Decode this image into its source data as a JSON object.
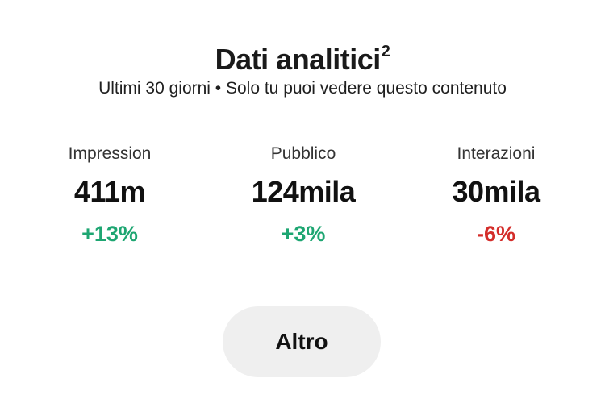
{
  "header": {
    "title": "Dati analitici",
    "title_superscript": "2",
    "subtitle": "Ultimi 30 giorni • Solo tu puoi vedere questo contenuto"
  },
  "stats": [
    {
      "label": "Impression",
      "value": "411m",
      "change": "+13%",
      "trend": "up"
    },
    {
      "label": "Pubblico",
      "value": "124mila",
      "change": "+3%",
      "trend": "up"
    },
    {
      "label": "Interazioni",
      "value": "30mila",
      "change": "-6%",
      "trend": "down"
    }
  ],
  "actions": {
    "more_label": "Altro"
  },
  "colors": {
    "positive": "#1ea672",
    "negative": "#d42d2a",
    "button_bg": "#efefef",
    "text": "#111111"
  }
}
